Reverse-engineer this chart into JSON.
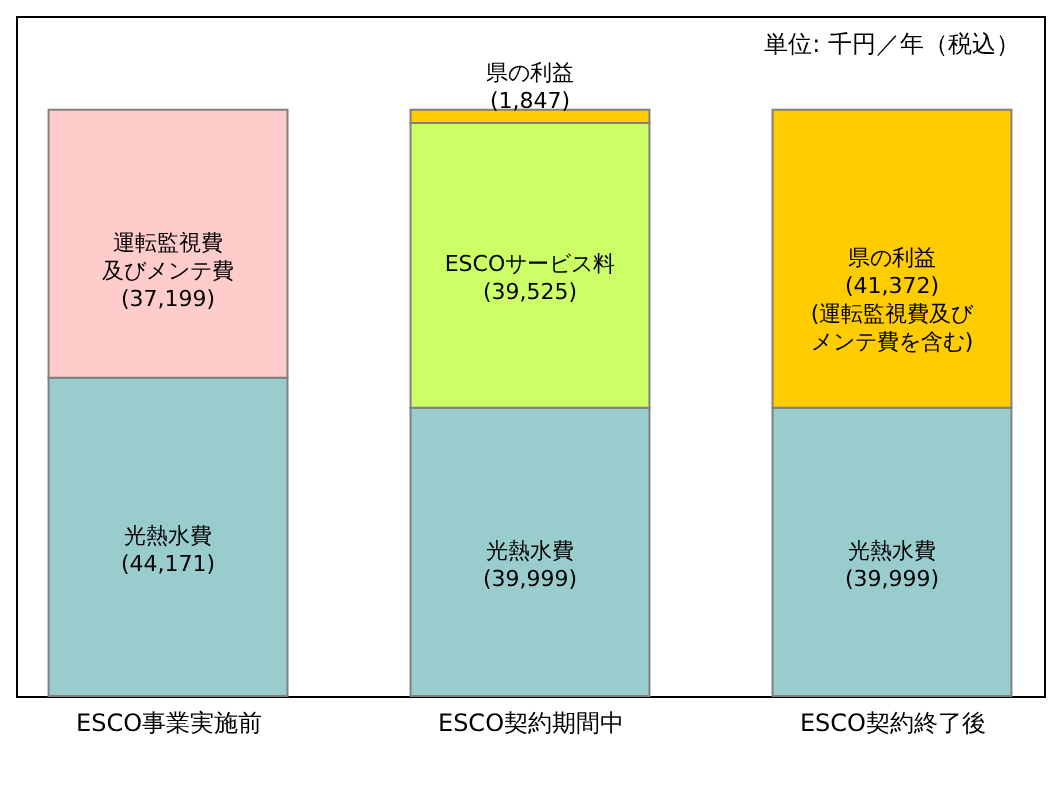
{
  "chart_data": {
    "type": "bar",
    "stacked": true,
    "data_labels": false,
    "categories": [
      "ESCO事業実施前",
      "ESCO契約期間中",
      "ESCO契約終了後"
    ],
    "series": [
      {
        "color": "#99cccc",
        "values": [
          44171,
          39999,
          39999
        ],
        "value_labels": [
          "光熱水費\n(44,171)",
          "光熱水費\n(39,999)",
          "光熱水費\n(39,999)"
        ]
      },
      {
        "color": "#ffcccc",
        "values": [
          37199,
          null,
          null
        ],
        "value_labels": [
          "運転監視費及びメンテ費\n(37,199)",
          null,
          null
        ]
      },
      {
        "color": "#ccff66",
        "values": [
          null,
          39525,
          null
        ],
        "value_labels": [
          null,
          "ESCOサービス料\n(39,525)",
          null
        ]
      },
      {
        "color": "#ffcc00",
        "values": [
          null,
          1847,
          41372
        ],
        "value_labels": [
          null,
          "県の利益\n(1,847)",
          "県の利益\n(41,372)\n(運転監視費及びメンテ費を含む)"
        ]
      }
    ],
    "annotations": [
      "単位: 千円／年（税込）"
    ],
    "grid": false
  }
}
